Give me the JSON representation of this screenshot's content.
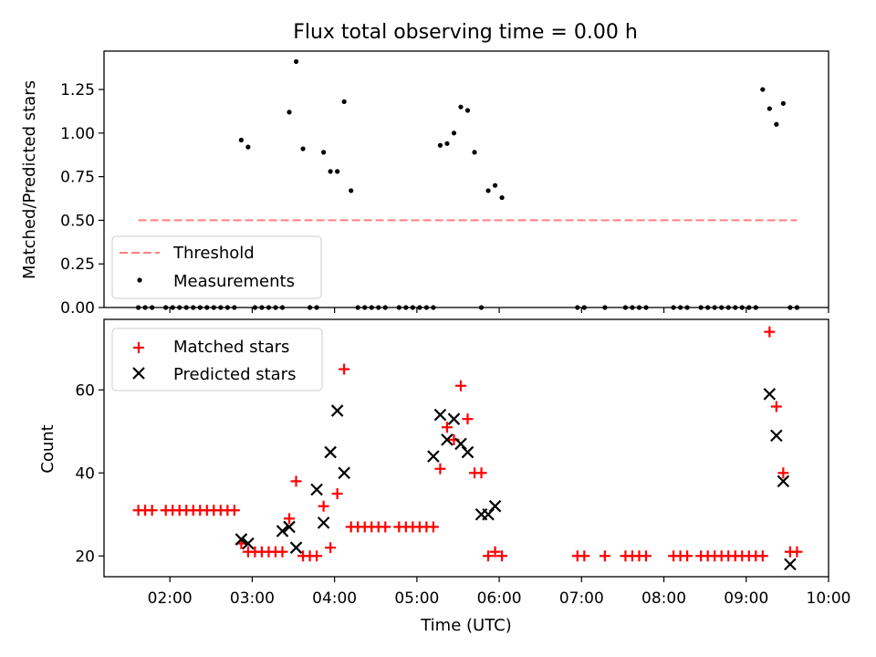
{
  "chart_data": [
    {
      "type": "scatter",
      "title": "Flux total observing time = 0.00 h",
      "xlabel": "",
      "ylabel": "Matched/Predicted stars",
      "xlim": [
        "01:12",
        "10:00"
      ],
      "ylim": [
        0,
        1.47
      ],
      "yticks": [
        "0.00",
        "0.25",
        "0.50",
        "0.75",
        "1.00",
        "1.25"
      ],
      "legend_location": "lower-left",
      "grid": false,
      "series": [
        {
          "name": "Threshold",
          "style": "dashed-line",
          "color": "#ff7f7f",
          "x": [
            "01:37",
            "09:37"
          ],
          "y": [
            0.5,
            0.5
          ]
        },
        {
          "name": "Measurements",
          "style": "dot",
          "color": "#000000",
          "x": [
            "01:37",
            "01:42",
            "01:47",
            "01:57",
            "02:02",
            "02:07",
            "02:12",
            "02:17",
            "02:22",
            "02:27",
            "02:32",
            "02:37",
            "02:42",
            "02:47",
            "02:52",
            "02:57",
            "03:02",
            "03:07",
            "03:12",
            "03:17",
            "03:22",
            "03:27",
            "03:32",
            "03:37",
            "03:42",
            "03:47",
            "03:52",
            "03:57",
            "04:02",
            "04:07",
            "04:12",
            "04:17",
            "04:22",
            "04:27",
            "04:32",
            "04:37",
            "04:47",
            "04:52",
            "04:57",
            "05:02",
            "05:07",
            "05:12",
            "05:17",
            "05:22",
            "05:27",
            "05:32",
            "05:37",
            "05:42",
            "05:47",
            "05:52",
            "05:57",
            "06:02",
            "06:57",
            "07:02",
            "07:17",
            "07:32",
            "07:37",
            "07:42",
            "07:47",
            "08:07",
            "08:12",
            "08:17",
            "08:27",
            "08:32",
            "08:37",
            "08:42",
            "08:47",
            "08:52",
            "08:57",
            "09:02",
            "09:07",
            "09:12",
            "09:17",
            "09:22",
            "09:27",
            "09:32",
            "09:37"
          ],
          "y": [
            0,
            0,
            0,
            0,
            0,
            0,
            0,
            0,
            0,
            0,
            0,
            0,
            0,
            0,
            0.96,
            0.92,
            0,
            0,
            0,
            0,
            0,
            1.12,
            1.41,
            0.91,
            0,
            0,
            0.89,
            0.78,
            0.78,
            1.18,
            0.67,
            0,
            0,
            0,
            0,
            0,
            0,
            0,
            0,
            0,
            0,
            0,
            0.93,
            0.94,
            1.0,
            1.15,
            1.13,
            0.89,
            0,
            0.67,
            0.7,
            0.63,
            0,
            0,
            0,
            0,
            0,
            0,
            0,
            0,
            0,
            0,
            0,
            0,
            0,
            0,
            0,
            0,
            0,
            0,
            0,
            1.25,
            1.14,
            1.05,
            1.17,
            0,
            0
          ]
        }
      ]
    },
    {
      "type": "scatter",
      "title": "",
      "xlabel": "Time (UTC)",
      "ylabel": "Count",
      "xlim": [
        "01:12",
        "10:00"
      ],
      "ylim": [
        15,
        77
      ],
      "yticks": [
        "20",
        "40",
        "60"
      ],
      "xticks": [
        "02:00",
        "03:00",
        "04:00",
        "05:00",
        "06:00",
        "07:00",
        "08:00",
        "09:00",
        "10:00"
      ],
      "legend_location": "upper-left",
      "grid": false,
      "series": [
        {
          "name": "Matched stars",
          "marker": "plus",
          "color": "#ff0000",
          "x": [
            "01:37",
            "01:42",
            "01:47",
            "01:57",
            "02:02",
            "02:07",
            "02:12",
            "02:17",
            "02:22",
            "02:27",
            "02:32",
            "02:37",
            "02:42",
            "02:47",
            "02:52",
            "02:57",
            "03:02",
            "03:07",
            "03:12",
            "03:17",
            "03:22",
            "03:27",
            "03:32",
            "03:37",
            "03:42",
            "03:47",
            "03:52",
            "03:57",
            "04:02",
            "04:07",
            "04:12",
            "04:17",
            "04:22",
            "04:27",
            "04:32",
            "04:37",
            "04:47",
            "04:52",
            "04:57",
            "05:02",
            "05:07",
            "05:12",
            "05:17",
            "05:22",
            "05:27",
            "05:32",
            "05:37",
            "05:42",
            "05:47",
            "05:52",
            "05:57",
            "06:02",
            "06:57",
            "07:02",
            "07:17",
            "07:32",
            "07:37",
            "07:42",
            "07:47",
            "08:07",
            "08:12",
            "08:17",
            "08:27",
            "08:32",
            "08:37",
            "08:42",
            "08:47",
            "08:52",
            "08:57",
            "09:02",
            "09:07",
            "09:12",
            "09:17",
            "09:22",
            "09:27",
            "09:32",
            "09:37"
          ],
          "y": [
            31,
            31,
            31,
            31,
            31,
            31,
            31,
            31,
            31,
            31,
            31,
            31,
            31,
            31,
            23,
            21,
            21,
            21,
            21,
            21,
            21,
            29,
            38,
            20,
            20,
            20,
            32,
            22,
            35,
            65,
            27,
            27,
            27,
            27,
            27,
            27,
            27,
            27,
            27,
            27,
            27,
            27,
            41,
            51,
            48,
            61,
            53,
            40,
            40,
            20,
            21,
            20,
            20,
            20,
            20,
            20,
            20,
            20,
            20,
            20,
            20,
            20,
            20,
            20,
            20,
            20,
            20,
            20,
            20,
            20,
            20,
            20,
            74,
            56,
            40,
            21,
            21
          ]
        },
        {
          "name": "Predicted stars",
          "marker": "x",
          "color": "#000000",
          "x": [
            "02:52",
            "02:57",
            "03:22",
            "03:27",
            "03:32",
            "03:47",
            "03:52",
            "03:57",
            "04:02",
            "04:07",
            "05:12",
            "05:17",
            "05:22",
            "05:27",
            "05:32",
            "05:37",
            "05:47",
            "05:52",
            "05:57",
            "09:17",
            "09:22",
            "09:27",
            "09:32"
          ],
          "y": [
            24,
            23,
            26,
            27,
            22,
            36,
            28,
            45,
            55,
            40,
            44,
            54,
            48,
            53,
            47,
            45,
            30,
            30,
            32,
            59,
            49,
            38,
            18
          ]
        }
      ]
    }
  ]
}
